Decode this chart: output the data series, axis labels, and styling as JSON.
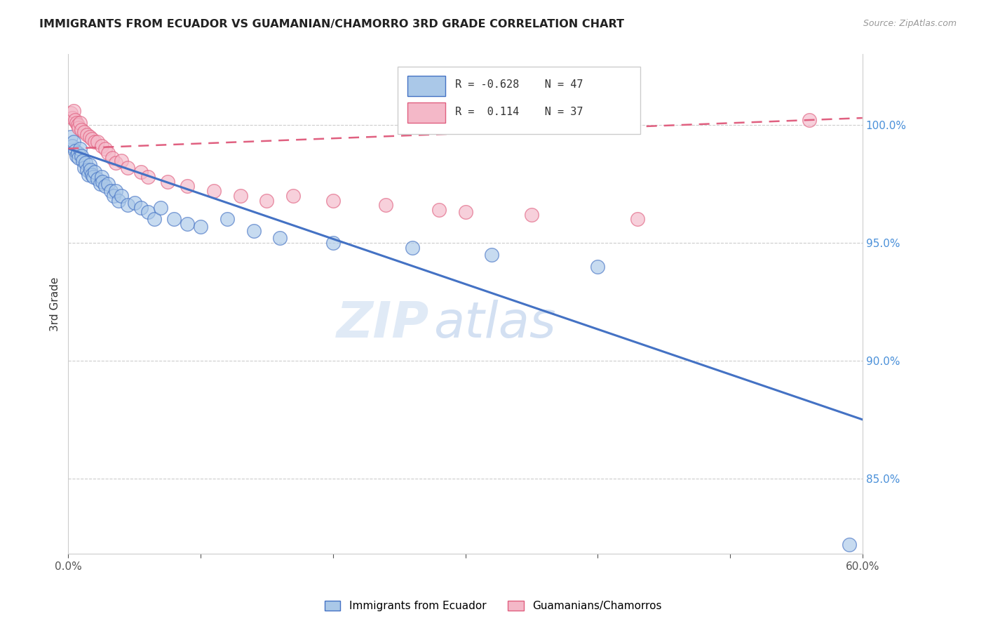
{
  "title": "IMMIGRANTS FROM ECUADOR VS GUAMANIAN/CHAMORRO 3RD GRADE CORRELATION CHART",
  "source": "Source: ZipAtlas.com",
  "ylabel": "3rd Grade",
  "yaxis_labels": [
    "100.0%",
    "95.0%",
    "90.0%",
    "85.0%"
  ],
  "yaxis_values": [
    1.0,
    0.95,
    0.9,
    0.85
  ],
  "xlim": [
    0.0,
    0.6
  ],
  "ylim": [
    0.818,
    1.03
  ],
  "legend_blue_r": "R = -0.628",
  "legend_blue_n": "N = 47",
  "legend_pink_r": "R =  0.114",
  "legend_pink_n": "N = 37",
  "legend_blue_label": "Immigrants from Ecuador",
  "legend_pink_label": "Guamanians/Chamorros",
  "blue_color": "#aac8e8",
  "blue_line_color": "#4472c4",
  "pink_color": "#f4b8c8",
  "pink_line_color": "#e06080",
  "watermark_zip": "ZIP",
  "watermark_atlas": "atlas",
  "blue_scatter_x": [
    0.002,
    0.003,
    0.004,
    0.005,
    0.006,
    0.007,
    0.008,
    0.009,
    0.01,
    0.011,
    0.012,
    0.013,
    0.014,
    0.015,
    0.016,
    0.017,
    0.018,
    0.019,
    0.02,
    0.022,
    0.024,
    0.025,
    0.026,
    0.028,
    0.03,
    0.032,
    0.034,
    0.036,
    0.038,
    0.04,
    0.045,
    0.05,
    0.055,
    0.06,
    0.065,
    0.07,
    0.08,
    0.09,
    0.1,
    0.12,
    0.14,
    0.16,
    0.2,
    0.26,
    0.32,
    0.4,
    0.59
  ],
  "blue_scatter_y": [
    0.995,
    0.991,
    0.993,
    0.989,
    0.987,
    0.988,
    0.986,
    0.99,
    0.987,
    0.985,
    0.982,
    0.984,
    0.981,
    0.979,
    0.983,
    0.981,
    0.979,
    0.978,
    0.98,
    0.977,
    0.975,
    0.978,
    0.976,
    0.974,
    0.975,
    0.972,
    0.97,
    0.972,
    0.968,
    0.97,
    0.966,
    0.967,
    0.965,
    0.963,
    0.96,
    0.965,
    0.96,
    0.958,
    0.957,
    0.96,
    0.955,
    0.952,
    0.95,
    0.948,
    0.945,
    0.94,
    0.822
  ],
  "pink_scatter_x": [
    0.002,
    0.003,
    0.004,
    0.005,
    0.006,
    0.007,
    0.008,
    0.009,
    0.01,
    0.012,
    0.014,
    0.016,
    0.018,
    0.02,
    0.022,
    0.025,
    0.028,
    0.03,
    0.033,
    0.036,
    0.04,
    0.045,
    0.055,
    0.06,
    0.075,
    0.09,
    0.11,
    0.13,
    0.15,
    0.17,
    0.2,
    0.24,
    0.28,
    0.3,
    0.35,
    0.43,
    0.56
  ],
  "pink_scatter_y": [
    1.005,
    1.003,
    1.006,
    1.002,
    1.001,
    1.0,
    0.999,
    1.001,
    0.998,
    0.997,
    0.996,
    0.995,
    0.994,
    0.993,
    0.993,
    0.991,
    0.99,
    0.988,
    0.986,
    0.984,
    0.985,
    0.982,
    0.98,
    0.978,
    0.976,
    0.974,
    0.972,
    0.97,
    0.968,
    0.97,
    0.968,
    0.966,
    0.964,
    0.963,
    0.962,
    0.96,
    1.002
  ],
  "blue_trend_x0": 0.0,
  "blue_trend_y0": 0.99,
  "blue_trend_x1": 0.6,
  "blue_trend_y1": 0.875,
  "pink_trend_x0": 0.0,
  "pink_trend_y0": 0.99,
  "pink_trend_x1": 0.6,
  "pink_trend_y1": 1.003
}
